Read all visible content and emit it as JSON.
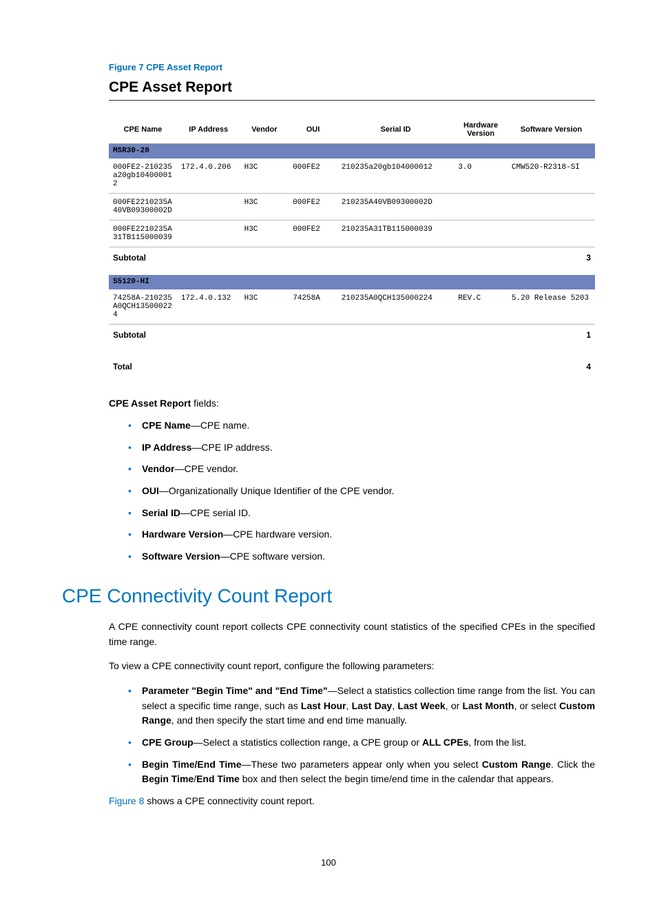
{
  "figure_label": "Figure 7 CPE Asset Report",
  "report": {
    "title": "CPE Asset Report",
    "columns": [
      "CPE Name",
      "IP Address",
      "Vendor",
      "OUI",
      "Serial ID",
      "Hardware Version",
      "Software Version"
    ],
    "groups": [
      {
        "name": "MSR30-20",
        "rows": [
          {
            "cpe": "000FE2-210235a20gb104000012",
            "ip": "172.4.0.206",
            "vendor": "H3C",
            "oui": "000FE2",
            "serial": "210235a20gb104000012",
            "hw": "3.0",
            "sw": "CMW520-R2318-SI"
          },
          {
            "cpe": "000FE2210235A40VB09300002D",
            "ip": "",
            "vendor": "H3C",
            "oui": "000FE2",
            "serial": "210235A40VB09300002D",
            "hw": "",
            "sw": ""
          },
          {
            "cpe": "000FE2210235A31TB115000039",
            "ip": "",
            "vendor": "H3C",
            "oui": "000FE2",
            "serial": "210235A31TB115000039",
            "hw": "",
            "sw": ""
          }
        ],
        "subtotal_label": "Subtotal",
        "subtotal": "3"
      },
      {
        "name": "S5120-HI",
        "rows": [
          {
            "cpe": "74258A-210235A0QCH135000224",
            "ip": "172.4.0.132",
            "vendor": "H3C",
            "oui": "74258A",
            "serial": "210235A0QCH135000224",
            "hw": "REV.C",
            "sw": "5.20 Release 5203"
          }
        ],
        "subtotal_label": "Subtotal",
        "subtotal": "1"
      }
    ],
    "total_label": "Total",
    "total": "4"
  },
  "fields_intro_bold": "CPE Asset Report",
  "fields_intro_rest": " fields:",
  "fields": [
    {
      "term": "CPE Name",
      "desc": "—CPE name."
    },
    {
      "term": "IP Address",
      "desc": "—CPE IP address."
    },
    {
      "term": "Vendor",
      "desc": "—CPE vendor."
    },
    {
      "term": "OUI",
      "desc": "—Organizationally Unique Identifier of the CPE vendor."
    },
    {
      "term": "Serial ID",
      "desc": "—CPE serial ID."
    },
    {
      "term": "Hardware Version",
      "desc": "—CPE hardware version."
    },
    {
      "term": "Software Version",
      "desc": "—CPE software version."
    }
  ],
  "section_heading": "CPE Connectivity Count Report",
  "para1": "A CPE connectivity count report collects CPE connectivity count statistics of the specified CPEs in the specified time range.",
  "para2": "To view a CPE connectivity count report, configure the following parameters:",
  "params": [
    {
      "bold1": "Parameter \"Begin Time\" and \"End Time\"",
      "t1": "—Select a statistics collection time range from the list. You can select a specific time range, such as ",
      "bold2": "Last Hour",
      "t2": ", ",
      "bold3": "Last Day",
      "t3": ", ",
      "bold4": "Last Week",
      "t4": ", or ",
      "bold5": "Last Month",
      "t5": ", or select ",
      "bold6": "Custom Range",
      "t6": ", and then specify the start time and end time manually."
    },
    {
      "bold1": "CPE Group",
      "t1": "—Select a statistics collection range, a CPE group or ",
      "bold2": "ALL CPEs",
      "t2": ", from the list."
    },
    {
      "bold1": "Begin Time/End Time",
      "t1": "—These two parameters appear only when you select ",
      "bold2": "Custom Range",
      "t2": ". Click the ",
      "bold3": "Begin Time",
      "t3": "/",
      "bold4": "End Time",
      "t4": " box and then select the begin time/end time in the calendar that appears."
    }
  ],
  "figure8_link": "Figure 8",
  "figure8_rest": " shows a CPE connectivity count report.",
  "page_number": "100",
  "colors": {
    "accent": "#0070b8",
    "heading": "#0077c0",
    "group_row_bg": "#6e83bd"
  }
}
